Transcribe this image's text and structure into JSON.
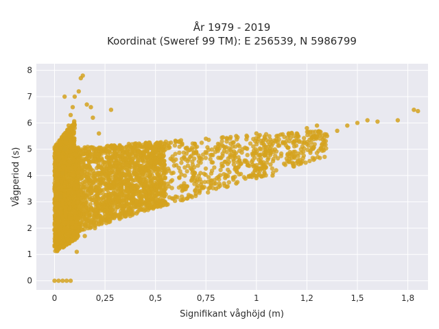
{
  "chart_data": {
    "type": "scatter",
    "title": "År 1979 - 2019",
    "subtitle": "Koordinat (Sweref 99 TM): E 256539, N 5986799",
    "xlabel": "Signifikant våghöjd (m)",
    "ylabel": "Vågperiod (s)",
    "xlim": [
      -0.09,
      1.85
    ],
    "ylim": [
      -0.35,
      8.25
    ],
    "x_ticks": [
      0,
      0.25,
      0.5,
      0.75,
      1,
      1.25,
      1.5,
      1.75
    ],
    "x_tick_labels": [
      "0",
      "0,25",
      "0,5",
      "0,75",
      "1",
      "1,2",
      "1,5",
      "1,8"
    ],
    "y_ticks": [
      0,
      1,
      2,
      3,
      4,
      5,
      6,
      7,
      8
    ],
    "y_tick_labels": [
      "0",
      "1",
      "2",
      "3",
      "4",
      "5",
      "6",
      "7",
      "8"
    ],
    "grid": true,
    "legend": "none",
    "point_color": "#D4A21E",
    "background_color": "#E9E9F0",
    "series": [
      {
        "points": [
          [
            0.0,
            0
          ],
          [
            0.02,
            0
          ],
          [
            0.04,
            0
          ],
          [
            0.06,
            0
          ],
          [
            0.08,
            0
          ],
          [
            0.01,
            1.5
          ],
          [
            0.02,
            2.4
          ],
          [
            0.03,
            3.2
          ],
          [
            0.04,
            4.1
          ],
          [
            0.05,
            5.0
          ],
          [
            0.06,
            5.4
          ],
          [
            0.07,
            5.9
          ],
          [
            0.08,
            6.3
          ],
          [
            0.09,
            6.6
          ],
          [
            0.1,
            7.0
          ],
          [
            0.12,
            7.2
          ],
          [
            0.14,
            7.8
          ],
          [
            0.13,
            7.7
          ],
          [
            0.18,
            6.6
          ],
          [
            0.11,
            1.1
          ],
          [
            0.15,
            1.7
          ],
          [
            0.2,
            2.0
          ],
          [
            0.25,
            2.3
          ],
          [
            0.3,
            2.5
          ],
          [
            0.35,
            2.6
          ],
          [
            0.4,
            2.8
          ],
          [
            0.45,
            2.9
          ],
          [
            0.5,
            3.0
          ],
          [
            0.6,
            3.2
          ],
          [
            0.7,
            3.3
          ],
          [
            0.8,
            3.5
          ],
          [
            0.9,
            3.7
          ],
          [
            1.0,
            3.9
          ],
          [
            0.3,
            5.0
          ],
          [
            0.45,
            5.1
          ],
          [
            0.6,
            5.3
          ],
          [
            0.75,
            5.4
          ],
          [
            0.9,
            5.5
          ],
          [
            1.0,
            5.6
          ],
          [
            1.1,
            5.5
          ],
          [
            1.2,
            5.6
          ],
          [
            1.25,
            5.8
          ],
          [
            1.3,
            5.9
          ],
          [
            1.35,
            5.5
          ],
          [
            1.4,
            5.7
          ],
          [
            1.45,
            5.9
          ],
          [
            1.5,
            6.0
          ],
          [
            1.55,
            6.1
          ],
          [
            1.6,
            6.05
          ],
          [
            1.7,
            6.1
          ],
          [
            1.78,
            6.5
          ],
          [
            1.8,
            6.45
          ],
          [
            1.22,
            4.5
          ],
          [
            1.08,
            4.0
          ],
          [
            0.97,
            4.0
          ],
          [
            0.28,
            6.5
          ],
          [
            0.22,
            5.6
          ],
          [
            0.19,
            6.2
          ],
          [
            0.16,
            6.7
          ],
          [
            0.05,
            7.0
          ]
        ]
      }
    ]
  }
}
